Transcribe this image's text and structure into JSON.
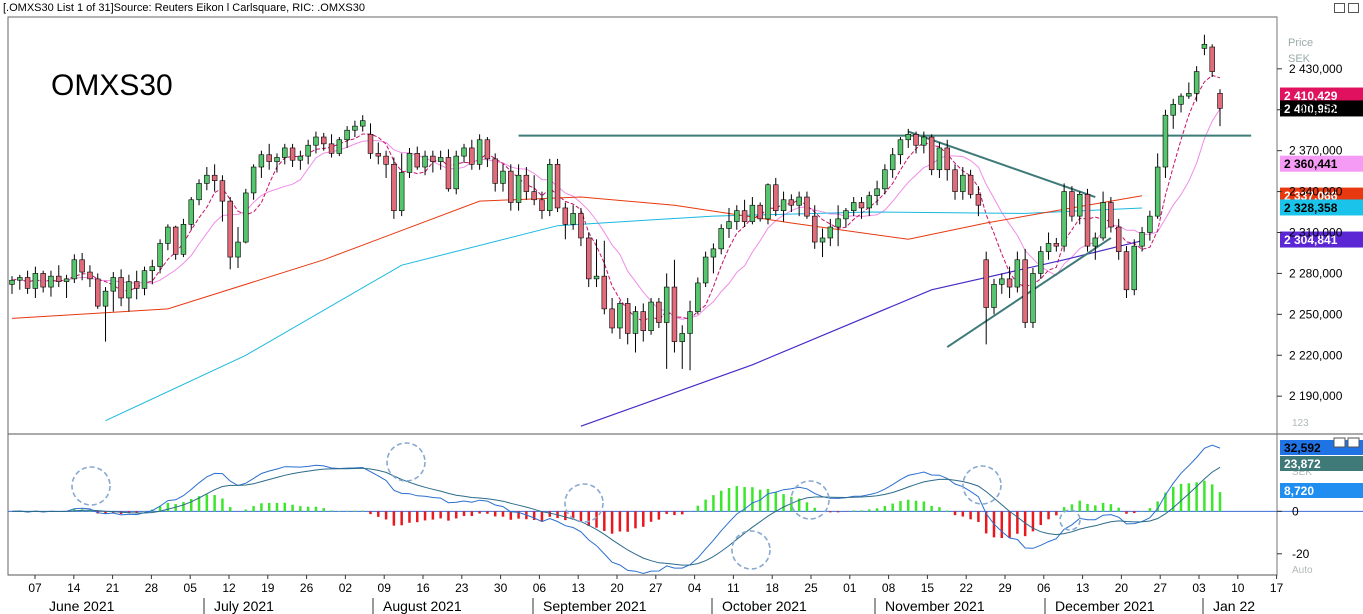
{
  "window": {
    "title": "[.OMXS30 List 1 of 31]Source: Reuters Eikon l Carlsquare, RIC: .OMXS30"
  },
  "chart_data": [
    {
      "type": "candlestick",
      "title": "OMXS30",
      "yaxis": {
        "title": "Price",
        "unit": "SEK",
        "ticks": [
          "2 430,000",
          "2 400,000",
          "2 370,000",
          "2 340,000",
          "2 310,000",
          "2 280,000",
          "2 250,000",
          "2 220,000",
          "2 190,000"
        ],
        "tick_values": [
          2430,
          2400,
          2370,
          2340,
          2310,
          2280,
          2250,
          2220,
          2190
        ],
        "range": [
          2163,
          2468
        ]
      },
      "price_badges": [
        {
          "label": "2 410,429",
          "value": 2410.429,
          "color": "#e0115f",
          "text_color": "#ffffff"
        },
        {
          "label": "2 400,952",
          "value": 2400.952,
          "color": "#000000",
          "text_color": "#ffffff"
        },
        {
          "label": "2 360,441",
          "value": 2360.441,
          "color": "#f59af5",
          "text_color": "#000000"
        },
        {
          "label": "2 337,066",
          "value": 2337.066,
          "color": "#e8380f",
          "text_color": "#ffffff"
        },
        {
          "label": "2 328,358",
          "value": 2328.358,
          "color": "#19c3ea",
          "text_color": "#000000"
        },
        {
          "label": "2 304,841",
          "value": 2304.841,
          "color": "#5b27d4",
          "text_color": "#ffffff"
        }
      ],
      "colors": {
        "up": "#56c56d",
        "down": "#e06b7b",
        "ma5": "#c8106a",
        "ma10": "#f08ce8",
        "ma50": "#e8380f",
        "ma100": "#19b8e0",
        "ma200": "#4a2bc8",
        "trendline": "#3e7a78"
      },
      "candles_ohlc": [
        [
          2272,
          2278,
          2265,
          2275
        ],
        [
          2275,
          2279,
          2268,
          2277
        ],
        [
          2277,
          2282,
          2265,
          2269
        ],
        [
          2269,
          2285,
          2262,
          2280
        ],
        [
          2280,
          2282,
          2266,
          2270
        ],
        [
          2270,
          2282,
          2263,
          2278
        ],
        [
          2278,
          2286,
          2270,
          2274
        ],
        [
          2274,
          2279,
          2262,
          2276
        ],
        [
          2276,
          2294,
          2273,
          2290
        ],
        [
          2290,
          2295,
          2275,
          2281
        ],
        [
          2281,
          2286,
          2270,
          2276
        ],
        [
          2276,
          2280,
          2254,
          2256
        ],
        [
          2256,
          2270,
          2230,
          2267
        ],
        [
          2267,
          2281,
          2252,
          2277
        ],
        [
          2277,
          2283,
          2256,
          2262
        ],
        [
          2262,
          2279,
          2252,
          2274
        ],
        [
          2274,
          2282,
          2261,
          2269
        ],
        [
          2269,
          2285,
          2264,
          2282
        ],
        [
          2282,
          2290,
          2272,
          2285
        ],
        [
          2285,
          2305,
          2280,
          2302
        ],
        [
          2302,
          2316,
          2297,
          2314
        ],
        [
          2314,
          2315,
          2290,
          2294
        ],
        [
          2294,
          2320,
          2292,
          2316
        ],
        [
          2316,
          2336,
          2312,
          2334
        ],
        [
          2334,
          2349,
          2330,
          2346
        ],
        [
          2346,
          2358,
          2341,
          2352
        ],
        [
          2352,
          2360,
          2340,
          2348
        ],
        [
          2348,
          2352,
          2318,
          2333
        ],
        [
          2333,
          2336,
          2283,
          2292
        ],
        [
          2292,
          2314,
          2284,
          2303
        ],
        [
          2303,
          2342,
          2302,
          2339
        ],
        [
          2339,
          2360,
          2334,
          2358
        ],
        [
          2358,
          2370,
          2350,
          2367
        ],
        [
          2367,
          2375,
          2356,
          2362
        ],
        [
          2362,
          2368,
          2354,
          2365
        ],
        [
          2365,
          2375,
          2360,
          2372
        ],
        [
          2372,
          2375,
          2358,
          2363
        ],
        [
          2363,
          2370,
          2356,
          2366
        ],
        [
          2366,
          2378,
          2360,
          2374
        ],
        [
          2374,
          2384,
          2368,
          2380
        ],
        [
          2380,
          2383,
          2370,
          2375
        ],
        [
          2375,
          2382,
          2365,
          2368
        ],
        [
          2368,
          2380,
          2366,
          2378
        ],
        [
          2378,
          2388,
          2372,
          2385
        ],
        [
          2385,
          2392,
          2380,
          2388
        ],
        [
          2388,
          2396,
          2384,
          2392
        ],
        [
          2382,
          2390,
          2364,
          2368
        ],
        [
          2368,
          2376,
          2360,
          2366
        ],
        [
          2366,
          2370,
          2350,
          2360
        ],
        [
          2360,
          2365,
          2320,
          2326
        ],
        [
          2326,
          2368,
          2322,
          2354
        ],
        [
          2354,
          2372,
          2350,
          2368
        ],
        [
          2368,
          2373,
          2356,
          2358
        ],
        [
          2358,
          2370,
          2352,
          2366
        ],
        [
          2366,
          2370,
          2354,
          2362
        ],
        [
          2362,
          2370,
          2356,
          2365
        ],
        [
          2365,
          2371,
          2340,
          2342
        ],
        [
          2342,
          2370,
          2338,
          2366
        ],
        [
          2366,
          2375,
          2361,
          2372
        ],
        [
          2372,
          2378,
          2356,
          2360
        ],
        [
          2360,
          2382,
          2356,
          2378
        ],
        [
          2378,
          2380,
          2358,
          2364
        ],
        [
          2364,
          2368,
          2340,
          2346
        ],
        [
          2346,
          2360,
          2340,
          2355
        ],
        [
          2355,
          2360,
          2326,
          2332
        ],
        [
          2332,
          2360,
          2326,
          2352
        ],
        [
          2352,
          2358,
          2334,
          2340
        ],
        [
          2340,
          2352,
          2330,
          2334
        ],
        [
          2334,
          2340,
          2320,
          2326
        ],
        [
          2326,
          2364,
          2322,
          2360
        ],
        [
          2360,
          2364,
          2325,
          2328
        ],
        [
          2328,
          2332,
          2305,
          2316
        ],
        [
          2316,
          2330,
          2312,
          2324
        ],
        [
          2324,
          2328,
          2300,
          2306
        ],
        [
          2306,
          2310,
          2270,
          2276
        ],
        [
          2276,
          2305,
          2270,
          2278
        ],
        [
          2278,
          2304,
          2250,
          2254
        ],
        [
          2254,
          2262,
          2236,
          2240
        ],
        [
          2240,
          2260,
          2232,
          2258
        ],
        [
          2258,
          2262,
          2228,
          2236
        ],
        [
          2236,
          2256,
          2222,
          2252
        ],
        [
          2252,
          2258,
          2230,
          2238
        ],
        [
          2238,
          2262,
          2235,
          2259
        ],
        [
          2259,
          2262,
          2240,
          2244
        ],
        [
          2244,
          2280,
          2210,
          2270
        ],
        [
          2270,
          2290,
          2222,
          2230
        ],
        [
          2230,
          2242,
          2210,
          2236
        ],
        [
          2236,
          2260,
          2209,
          2252
        ],
        [
          2252,
          2277,
          2250,
          2273
        ],
        [
          2273,
          2296,
          2270,
          2292
        ],
        [
          2292,
          2302,
          2280,
          2298
        ],
        [
          2298,
          2316,
          2294,
          2313
        ],
        [
          2313,
          2328,
          2306,
          2318
        ],
        [
          2318,
          2330,
          2312,
          2326
        ],
        [
          2326,
          2334,
          2314,
          2318
        ],
        [
          2318,
          2336,
          2316,
          2330
        ],
        [
          2330,
          2332,
          2318,
          2320
        ],
        [
          2320,
          2346,
          2316,
          2345
        ],
        [
          2345,
          2350,
          2322,
          2326
        ],
        [
          2326,
          2340,
          2318,
          2334
        ],
        [
          2334,
          2338,
          2325,
          2330
        ],
        [
          2330,
          2340,
          2322,
          2336
        ],
        [
          2336,
          2340,
          2320,
          2322
        ],
        [
          2322,
          2330,
          2298,
          2303
        ],
        [
          2303,
          2313,
          2292,
          2306
        ],
        [
          2306,
          2320,
          2300,
          2314
        ],
        [
          2314,
          2330,
          2300,
          2320
        ],
        [
          2320,
          2328,
          2314,
          2326
        ],
        [
          2326,
          2336,
          2322,
          2332
        ],
        [
          2332,
          2336,
          2320,
          2328
        ],
        [
          2328,
          2340,
          2322,
          2337
        ],
        [
          2337,
          2348,
          2330,
          2342
        ],
        [
          2342,
          2360,
          2338,
          2356
        ],
        [
          2356,
          2372,
          2350,
          2367
        ],
        [
          2367,
          2380,
          2360,
          2378
        ],
        [
          2378,
          2386,
          2372,
          2382
        ],
        [
          2382,
          2384,
          2368,
          2374
        ],
        [
          2374,
          2384,
          2368,
          2380
        ],
        [
          2380,
          2382,
          2352,
          2356
        ],
        [
          2356,
          2376,
          2350,
          2372
        ],
        [
          2372,
          2378,
          2348,
          2356
        ],
        [
          2356,
          2360,
          2334,
          2340
        ],
        [
          2340,
          2358,
          2334,
          2352
        ],
        [
          2352,
          2356,
          2335,
          2338
        ],
        [
          2338,
          2344,
          2322,
          2330
        ],
        [
          2290,
          2296,
          2228,
          2255
        ],
        [
          2255,
          2276,
          2250,
          2272
        ],
        [
          2272,
          2280,
          2265,
          2276
        ],
        [
          2276,
          2285,
          2262,
          2270
        ],
        [
          2270,
          2296,
          2266,
          2290
        ],
        [
          2290,
          2298,
          2240,
          2244
        ],
        [
          2244,
          2284,
          2240,
          2280
        ],
        [
          2280,
          2300,
          2276,
          2296
        ],
        [
          2296,
          2310,
          2290,
          2302
        ],
        [
          2302,
          2306,
          2296,
          2300
        ],
        [
          2300,
          2346,
          2296,
          2340
        ],
        [
          2340,
          2344,
          2318,
          2322
        ],
        [
          2322,
          2340,
          2316,
          2338
        ],
        [
          2338,
          2342,
          2296,
          2300
        ],
        [
          2300,
          2310,
          2290,
          2306
        ],
        [
          2306,
          2340,
          2304,
          2332
        ],
        [
          2332,
          2336,
          2310,
          2314
        ],
        [
          2314,
          2320,
          2290,
          2296
        ],
        [
          2296,
          2300,
          2262,
          2268
        ],
        [
          2268,
          2305,
          2264,
          2300
        ],
        [
          2300,
          2314,
          2296,
          2310
        ],
        [
          2310,
          2326,
          2304,
          2322
        ],
        [
          2322,
          2368,
          2320,
          2358
        ],
        [
          2358,
          2400,
          2350,
          2396
        ],
        [
          2396,
          2408,
          2386,
          2404
        ],
        [
          2404,
          2412,
          2398,
          2410
        ],
        [
          2410,
          2420,
          2408,
          2412
        ],
        [
          2412,
          2432,
          2406,
          2428
        ],
        [
          2445,
          2455,
          2440,
          2448
        ],
        [
          2446,
          2448,
          2424,
          2428
        ],
        [
          2412,
          2415,
          2388,
          2401
        ]
      ],
      "trendlines": [
        {
          "name": "resistance",
          "x": [
            65,
            159
          ],
          "y": [
            2381,
            2381
          ]
        },
        {
          "name": "down-trend",
          "x": [
            115,
            139
          ],
          "y": [
            2384,
            2336
          ]
        },
        {
          "name": "up-trend",
          "x": [
            120,
            141
          ],
          "y": [
            2226,
            2306
          ]
        }
      ],
      "xaxis": {
        "day_ticks": [
          "07",
          "14",
          "21",
          "28",
          "05",
          "12",
          "19",
          "26",
          "02",
          "09",
          "16",
          "23",
          "30",
          "06",
          "13",
          "20",
          "27",
          "04",
          "11",
          "18",
          "25",
          "01",
          "08",
          "15",
          "22",
          "29",
          "06",
          "13",
          "20",
          "27",
          "03",
          "10",
          "17"
        ],
        "months": [
          "June 2021",
          "July 2021",
          "August 2021",
          "September 2021",
          "October 2021",
          "November 2021",
          "December 2021",
          "Jan 22"
        ]
      }
    },
    {
      "type": "line+bar",
      "name": "macd",
      "yaxis": {
        "ticks": [
          "0",
          "-20"
        ],
        "tick_values": [
          0,
          -20
        ],
        "range": [
          -30,
          36
        ]
      },
      "badges": [
        {
          "label": "32,592",
          "value": 32.592,
          "color": "#1f73e5",
          "text_color": "#000000"
        },
        {
          "label": "23,872",
          "value": 23.872,
          "color": "#3f7a78",
          "text_color": "#ffffff"
        },
        {
          "label": "8,720",
          "value": 8.72,
          "color": "#1f8ef0",
          "text_color": "#ffffff"
        }
      ],
      "side_labels": [
        "123",
        "SEK",
        "Auto"
      ],
      "colors": {
        "pos_bar": "#3be62c",
        "neg_bar": "#e8181e",
        "macd": "#2a6fcf",
        "signal": "#2b6b8a",
        "circle": "#88a9cf"
      }
    }
  ]
}
